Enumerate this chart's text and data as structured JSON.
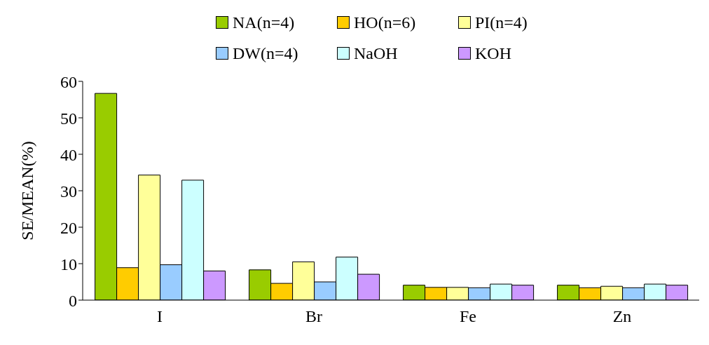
{
  "chart_data": {
    "type": "bar",
    "ylabel": "SE/MEAN(%)",
    "categories": [
      "I",
      "Br",
      "Fe",
      "Zn"
    ],
    "series": [
      {
        "name": "NA(n=4)",
        "color": "#99cc00",
        "values": [
          56.7,
          8.3,
          4.1,
          4.1
        ]
      },
      {
        "name": "HO(n=6)",
        "color": "#ffcc00",
        "values": [
          8.9,
          4.6,
          3.5,
          3.4
        ]
      },
      {
        "name": "PI(n=4)",
        "color": "#ffff99",
        "values": [
          34.3,
          10.5,
          3.5,
          3.8
        ]
      },
      {
        "name": "DW(n=4)",
        "color": "#99ccff",
        "values": [
          9.7,
          5.0,
          3.4,
          3.4
        ]
      },
      {
        "name": "NaOH",
        "color": "#ccffff",
        "values": [
          32.9,
          11.8,
          4.4,
          4.4
        ]
      },
      {
        "name": "KOH",
        "color": "#cc99ff",
        "values": [
          8.0,
          7.1,
          4.1,
          4.1
        ]
      }
    ],
    "ylim": [
      0,
      60
    ],
    "yticks": [
      0,
      10,
      20,
      30,
      40,
      50,
      60
    ],
    "grid": false,
    "legend": "top right"
  }
}
